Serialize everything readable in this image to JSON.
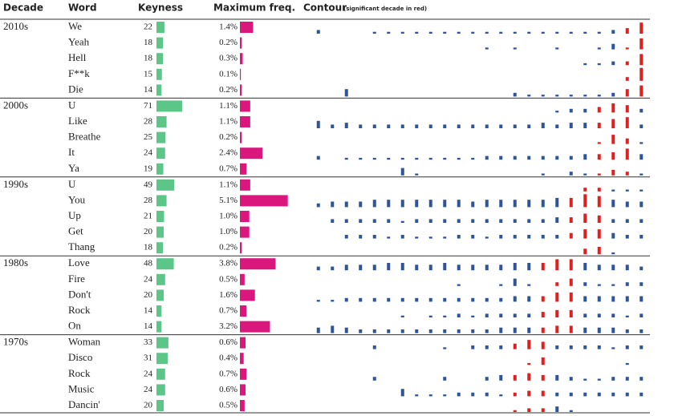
{
  "header": {
    "decade": "Decade",
    "word": "Word",
    "keyness": "Keyness",
    "freq": "Maximum freq.",
    "contour": "Contour",
    "contour_note": "(significant decade in red)"
  },
  "colors": {
    "keyness": "#5cc689",
    "freq": "#d9177c",
    "contour": "#2f5597",
    "significant": "#e0201f"
  },
  "groups": [
    {
      "decade": "2010s",
      "red_bins": [
        22,
        23
      ],
      "rows": [
        {
          "word": "We",
          "keyness": 22,
          "freq": 1.4,
          "freq_label": "1.4%",
          "contour": [
            2,
            0,
            0,
            0,
            1,
            1,
            1,
            1,
            1,
            1,
            1,
            1,
            1,
            1,
            1,
            1,
            1,
            1,
            1,
            1,
            1,
            2,
            3,
            6
          ]
        },
        {
          "word": "Yeah",
          "keyness": 18,
          "freq": 0.2,
          "freq_label": "0.2%",
          "contour": [
            0,
            0,
            0,
            0,
            0,
            0,
            0,
            0,
            0,
            0,
            0,
            0,
            1,
            0,
            1,
            0,
            0,
            1,
            0,
            0,
            1,
            3,
            1,
            6
          ]
        },
        {
          "word": "Hell",
          "keyness": 18,
          "freq": 0.3,
          "freq_label": "0.3%",
          "contour": [
            0,
            0,
            0,
            0,
            0,
            0,
            0,
            0,
            0,
            0,
            0,
            0,
            0,
            0,
            0,
            0,
            0,
            0,
            0,
            1,
            1,
            2,
            2,
            6
          ]
        },
        {
          "word": "F**k",
          "keyness": 15,
          "freq": 0.1,
          "freq_label": "0.1%",
          "contour": [
            0,
            0,
            0,
            0,
            0,
            0,
            0,
            0,
            0,
            0,
            0,
            0,
            0,
            0,
            0,
            0,
            0,
            0,
            0,
            0,
            0,
            0,
            2,
            7
          ]
        },
        {
          "word": "Die",
          "keyness": 14,
          "freq": 0.2,
          "freq_label": "0.2%",
          "contour": [
            0,
            0,
            4,
            0,
            0,
            0,
            0,
            0,
            0,
            0,
            0,
            0,
            0,
            0,
            2,
            1,
            1,
            1,
            1,
            1,
            1,
            2,
            4,
            6
          ]
        }
      ]
    },
    {
      "decade": "2000s",
      "red_bins": [
        20,
        22
      ],
      "rows": [
        {
          "word": "U",
          "keyness": 71,
          "freq": 1.1,
          "freq_label": "1.1%",
          "contour": [
            0,
            0,
            0,
            0,
            0,
            0,
            0,
            0,
            0,
            0,
            0,
            0,
            0,
            0,
            0,
            0,
            0,
            1,
            2,
            2,
            3,
            5,
            4,
            2
          ]
        },
        {
          "word": "Like",
          "keyness": 28,
          "freq": 1.1,
          "freq_label": "1.1%",
          "contour": [
            4,
            2,
            3,
            2,
            2,
            2,
            2,
            2,
            2,
            2,
            2,
            2,
            2,
            2,
            2,
            2,
            3,
            2,
            3,
            3,
            3,
            5,
            6,
            2
          ]
        },
        {
          "word": "Breathe",
          "keyness": 25,
          "freq": 0.2,
          "freq_label": "0.2%",
          "contour": [
            0,
            0,
            0,
            0,
            0,
            0,
            0,
            0,
            0,
            0,
            0,
            0,
            0,
            0,
            0,
            0,
            0,
            0,
            0,
            0,
            1,
            5,
            3,
            1
          ]
        },
        {
          "word": "It",
          "keyness": 24,
          "freq": 2.4,
          "freq_label": "2.4%",
          "contour": [
            2,
            0,
            1,
            1,
            1,
            1,
            1,
            1,
            1,
            1,
            1,
            1,
            2,
            2,
            2,
            2,
            2,
            2,
            2,
            3,
            3,
            4,
            6,
            3
          ]
        },
        {
          "word": "Ya",
          "keyness": 19,
          "freq": 0.7,
          "freq_label": "0.7%",
          "contour": [
            0,
            0,
            0,
            0,
            0,
            0,
            4,
            1,
            0,
            0,
            0,
            0,
            0,
            0,
            0,
            0,
            1,
            0,
            2,
            1,
            1,
            3,
            2,
            1
          ]
        }
      ]
    },
    {
      "decade": "1990s",
      "red_bins": [
        18,
        20
      ],
      "rows": [
        {
          "word": "U",
          "keyness": 49,
          "freq": 1.1,
          "freq_label": "1.1%",
          "contour": [
            0,
            0,
            0,
            0,
            0,
            0,
            0,
            0,
            0,
            0,
            0,
            0,
            0,
            0,
            0,
            0,
            0,
            0,
            0,
            2,
            2,
            1,
            1,
            1
          ]
        },
        {
          "word": "You",
          "keyness": 28,
          "freq": 5.1,
          "freq_label": "5.1%",
          "contour": [
            2,
            3,
            3,
            3,
            4,
            4,
            4,
            4,
            4,
            4,
            4,
            3,
            4,
            4,
            4,
            4,
            4,
            5,
            5,
            7,
            6,
            4,
            3,
            3
          ]
        },
        {
          "word": "Up",
          "keyness": 21,
          "freq": 1.0,
          "freq_label": "1.0%",
          "contour": [
            0,
            2,
            2,
            2,
            2,
            2,
            1,
            2,
            2,
            2,
            2,
            2,
            2,
            2,
            2,
            2,
            2,
            3,
            3,
            5,
            4,
            2,
            2,
            2
          ]
        },
        {
          "word": "Get",
          "keyness": 20,
          "freq": 1.0,
          "freq_label": "1.0%",
          "contour": [
            0,
            0,
            2,
            2,
            2,
            1,
            2,
            1,
            1,
            1,
            2,
            2,
            1,
            2,
            2,
            2,
            2,
            2,
            3,
            5,
            5,
            3,
            2,
            2
          ]
        },
        {
          "word": "Thang",
          "keyness": 18,
          "freq": 0.2,
          "freq_label": "0.2%",
          "contour": [
            0,
            0,
            0,
            0,
            0,
            0,
            0,
            0,
            0,
            0,
            0,
            0,
            0,
            0,
            0,
            0,
            0,
            0,
            0,
            3,
            4,
            1,
            0,
            0
          ]
        }
      ]
    },
    {
      "decade": "1980s",
      "red_bins": [
        16,
        18
      ],
      "rows": [
        {
          "word": "Love",
          "keyness": 48,
          "freq": 3.8,
          "freq_label": "3.8%",
          "contour": [
            2,
            2,
            3,
            3,
            3,
            4,
            4,
            3,
            3,
            4,
            3,
            3,
            3,
            3,
            4,
            4,
            4,
            6,
            6,
            4,
            3,
            3,
            3,
            2
          ]
        },
        {
          "word": "Fire",
          "keyness": 24,
          "freq": 0.5,
          "freq_label": "0.5%",
          "contour": [
            0,
            0,
            0,
            0,
            0,
            0,
            0,
            0,
            0,
            0,
            1,
            0,
            0,
            1,
            4,
            1,
            0,
            2,
            4,
            2,
            1,
            1,
            2,
            2
          ]
        },
        {
          "word": "Don't",
          "keyness": 20,
          "freq": 1.6,
          "freq_label": "1.6%",
          "contour": [
            1,
            1,
            2,
            2,
            2,
            2,
            2,
            2,
            2,
            2,
            2,
            2,
            2,
            2,
            3,
            3,
            3,
            5,
            5,
            3,
            3,
            3,
            3,
            3
          ]
        },
        {
          "word": "Rock",
          "keyness": 14,
          "freq": 0.7,
          "freq_label": "0.7%",
          "contour": [
            0,
            0,
            0,
            0,
            0,
            0,
            1,
            0,
            1,
            1,
            2,
            1,
            2,
            2,
            2,
            2,
            3,
            4,
            4,
            2,
            2,
            2,
            1,
            2
          ]
        },
        {
          "word": "On",
          "keyness": 14,
          "freq": 3.2,
          "freq_label": "3.2%",
          "contour": [
            3,
            4,
            3,
            2,
            2,
            2,
            2,
            2,
            2,
            2,
            2,
            2,
            2,
            3,
            3,
            3,
            3,
            4,
            4,
            3,
            3,
            3,
            2,
            2
          ]
        }
      ]
    },
    {
      "decade": "1970s",
      "red_bins": [
        14,
        16
      ],
      "rows": [
        {
          "word": "Woman",
          "keyness": 33,
          "freq": 0.6,
          "freq_label": "0.6%",
          "contour": [
            0,
            0,
            0,
            0,
            2,
            0,
            0,
            0,
            0,
            1,
            0,
            2,
            2,
            2,
            3,
            5,
            4,
            2,
            2,
            2,
            2,
            1,
            2,
            2
          ]
        },
        {
          "word": "Disco",
          "keyness": 31,
          "freq": 0.4,
          "freq_label": "0.4%",
          "contour": [
            0,
            0,
            0,
            0,
            0,
            0,
            0,
            0,
            0,
            0,
            0,
            0,
            0,
            0,
            0,
            1,
            4,
            0,
            0,
            0,
            0,
            0,
            1,
            0
          ]
        },
        {
          "word": "Rock",
          "keyness": 24,
          "freq": 0.7,
          "freq_label": "0.7%",
          "contour": [
            0,
            0,
            0,
            0,
            2,
            0,
            0,
            0,
            0,
            2,
            0,
            0,
            2,
            3,
            3,
            4,
            3,
            3,
            2,
            1,
            1,
            2,
            2,
            2
          ]
        },
        {
          "word": "Music",
          "keyness": 24,
          "freq": 0.6,
          "freq_label": "0.6%",
          "contour": [
            0,
            0,
            0,
            0,
            0,
            0,
            4,
            1,
            1,
            1,
            2,
            2,
            2,
            1,
            2,
            3,
            3,
            2,
            2,
            2,
            2,
            2,
            2,
            2
          ]
        },
        {
          "word": "Dancin'",
          "keyness": 20,
          "freq": 0.5,
          "freq_label": "0.5%",
          "contour": [
            0,
            0,
            0,
            0,
            0,
            0,
            0,
            0,
            0,
            0,
            0,
            0,
            0,
            0,
            1,
            2,
            2,
            3,
            1,
            0,
            0,
            0,
            0,
            0
          ]
        }
      ]
    }
  ]
}
